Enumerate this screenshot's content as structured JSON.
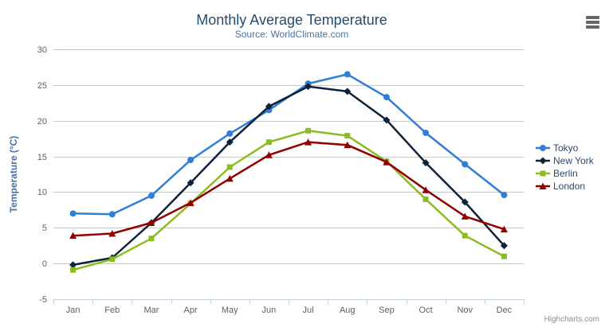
{
  "chart_data": {
    "type": "line",
    "title": "Monthly Average Temperature",
    "subtitle": "Source: WorldClimate.com",
    "xlabel": "",
    "ylabel": "Temperature (°C)",
    "ylim": [
      -5,
      30
    ],
    "ytick_interval": 5,
    "grid": true,
    "legend_position": "right",
    "categories": [
      "Jan",
      "Feb",
      "Mar",
      "Apr",
      "May",
      "Jun",
      "Jul",
      "Aug",
      "Sep",
      "Oct",
      "Nov",
      "Dec"
    ],
    "series": [
      {
        "name": "Tokyo",
        "color": "#2f7ed8",
        "marker": "circle",
        "values": [
          7.0,
          6.9,
          9.5,
          14.5,
          18.2,
          21.5,
          25.2,
          26.5,
          23.3,
          18.3,
          13.9,
          9.6
        ]
      },
      {
        "name": "New York",
        "color": "#0d233a",
        "marker": "diamond",
        "values": [
          -0.2,
          0.8,
          5.7,
          11.3,
          17.0,
          22.0,
          24.8,
          24.1,
          20.1,
          14.1,
          8.6,
          2.5
        ]
      },
      {
        "name": "Berlin",
        "color": "#8bbc21",
        "marker": "square",
        "values": [
          -0.9,
          0.6,
          3.5,
          8.4,
          13.5,
          17.0,
          18.6,
          17.9,
          14.3,
          9.0,
          3.9,
          1.0
        ]
      },
      {
        "name": "London",
        "color": "#910000",
        "marker": "triangle",
        "values": [
          3.9,
          4.2,
          5.7,
          8.5,
          11.9,
          15.2,
          17.0,
          16.6,
          14.2,
          10.3,
          6.6,
          4.8
        ]
      }
    ]
  },
  "credits": "Highcharts.com",
  "icons": {
    "context_menu": "hamburger-icon"
  },
  "colors": {
    "title": "#274b6d",
    "subtitle": "#4d759e",
    "axis_title": "#4572a7",
    "tick_label": "#606060",
    "grid_line": "#c8c8c8",
    "axis_line": "#c0d0e0",
    "credits": "#909090",
    "menu_icon": "#666666",
    "background": "#ffffff"
  }
}
